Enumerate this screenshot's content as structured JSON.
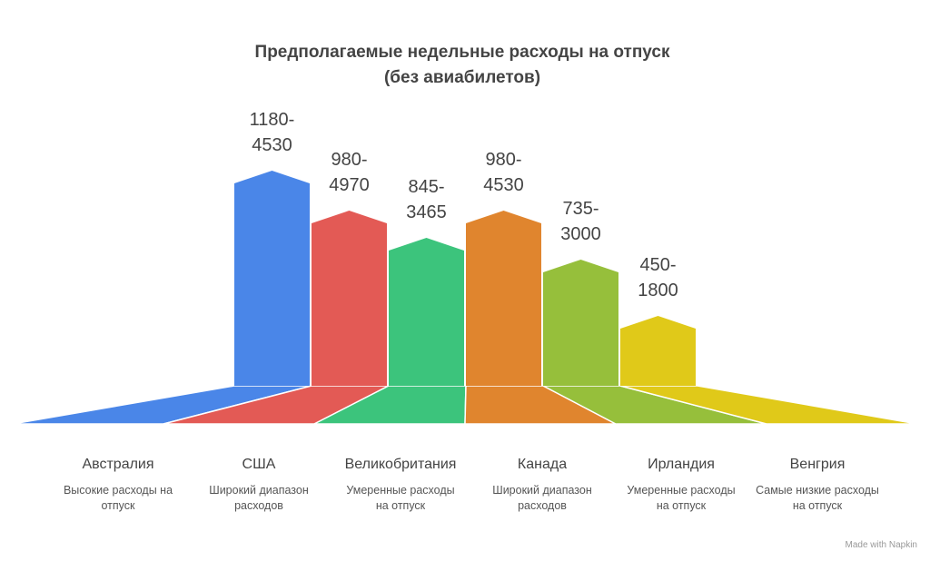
{
  "title": "Предполагаемые недельные расходы на отпуск (без авиабилетов)",
  "items": [
    {
      "name": "Австралия",
      "range": "1180-4530",
      "description": "Высокие расходы на отпуск"
    },
    {
      "name": "США",
      "range": "980-4970",
      "description": "Широкий диапазон расходов"
    },
    {
      "name": "Великобритания",
      "range": "845-3465",
      "description": "Умеренные расходы на отпуск"
    },
    {
      "name": "Канада",
      "range": "980-4530",
      "description": "Широкий диапазон расходов"
    },
    {
      "name": "Ирландия",
      "range": "735-3000",
      "description": "Умеренные расходы на отпуск"
    },
    {
      "name": "Венгрия",
      "range": "450-1800",
      "description": "Самые низкие расходы на отпуск"
    }
  ],
  "footer": "Made with Napkin"
}
